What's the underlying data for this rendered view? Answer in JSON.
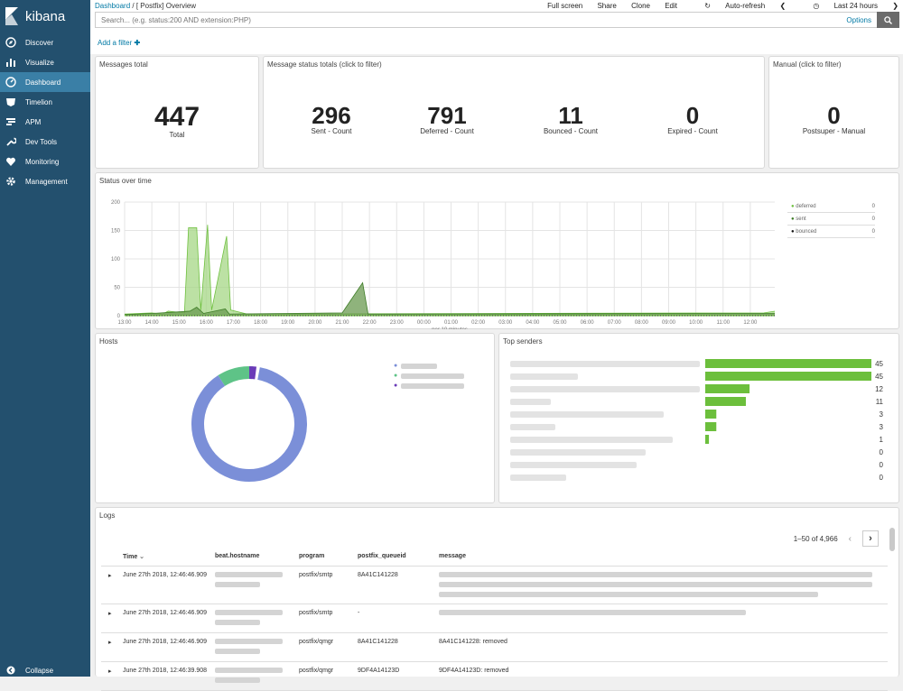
{
  "sidebar": {
    "brand": "kibana",
    "items": [
      {
        "label": "Discover",
        "icon": "compass-icon"
      },
      {
        "label": "Visualize",
        "icon": "bar-chart-icon"
      },
      {
        "label": "Dashboard",
        "icon": "dashboard-icon",
        "active": true
      },
      {
        "label": "Timelion",
        "icon": "timelion-icon"
      },
      {
        "label": "APM",
        "icon": "apm-icon"
      },
      {
        "label": "Dev Tools",
        "icon": "wrench-icon"
      },
      {
        "label": "Monitoring",
        "icon": "heartbeat-icon"
      },
      {
        "label": "Management",
        "icon": "gear-icon"
      }
    ],
    "collapse": "Collapse"
  },
  "topbar": {
    "breadcrumb_root": "Dashboard",
    "breadcrumb_sep": "/",
    "breadcrumb_current": "[ Postfix] Overview",
    "actions": [
      "Full screen",
      "Share",
      "Clone",
      "Edit",
      "Auto-refresh"
    ],
    "time_range": "Last 24 hours"
  },
  "search": {
    "placeholder": "Search... (e.g. status:200 AND extension:PHP)",
    "options": "Options"
  },
  "filter": {
    "add": "Add a filter"
  },
  "panels": {
    "messages_total": {
      "title": "Messages total",
      "value": "447",
      "label": "Total"
    },
    "status_totals": {
      "title": "Message status totals (click to filter)",
      "metrics": [
        {
          "value": "296",
          "label": "Sent - Count"
        },
        {
          "value": "791",
          "label": "Deferred - Count"
        },
        {
          "value": "11",
          "label": "Bounced - Count"
        },
        {
          "value": "0",
          "label": "Expired - Count"
        }
      ]
    },
    "manual": {
      "title": "Manual (click to filter)",
      "value": "0",
      "label": "Postsuper - Manual"
    },
    "status_over_time": {
      "title": "Status over time",
      "legend": [
        {
          "name": "deferred",
          "value": "0",
          "color": "#6fc03f"
        },
        {
          "name": "sent",
          "value": "0",
          "color": "#3e7d27"
        },
        {
          "name": "bounced",
          "value": "0",
          "color": "#111111"
        }
      ]
    },
    "hosts": {
      "title": "Hosts"
    },
    "top_senders": {
      "title": "Top senders"
    },
    "logs": {
      "title": "Logs",
      "pagination": "1–50 of 4,966",
      "columns": [
        "Time",
        "beat.hostname",
        "program",
        "postfix_queueid",
        "message"
      ],
      "rows": [
        {
          "time": "June 27th 2018, 12:46:46.909",
          "program": "postfix/smtp",
          "queueid": "8A41C141228",
          "message": ""
        },
        {
          "time": "June 27th 2018, 12:46:46.909",
          "program": "postfix/smtp",
          "queueid": "-",
          "message": ""
        },
        {
          "time": "June 27th 2018, 12:46:46.909",
          "program": "postfix/qmgr",
          "queueid": "8A41C141228",
          "message": "8A41C141228: removed"
        },
        {
          "time": "June 27th 2018, 12:46:39.908",
          "program": "postfix/qmgr",
          "queueid": "9DF4A14123D",
          "message": "9DF4A14123D: removed"
        }
      ]
    }
  },
  "chart_data": [
    {
      "type": "area",
      "title": "Status over time",
      "xlabel": "per 10 minutes",
      "x": [
        "13:00",
        "14:00",
        "15:00",
        "16:00",
        "17:00",
        "18:00",
        "19:00",
        "20:00",
        "21:00",
        "22:00",
        "23:00",
        "00:00",
        "01:00",
        "02:00",
        "03:00",
        "04:00",
        "05:00",
        "06:00",
        "07:00",
        "08:00",
        "09:00",
        "10:00",
        "11:00",
        "12:00"
      ],
      "yticks": [
        0,
        50,
        100,
        150,
        200
      ],
      "ylim": [
        0,
        200
      ],
      "series": [
        {
          "name": "deferred",
          "points": [
            [
              0,
              3
            ],
            [
              1,
              5
            ],
            [
              1.4,
              3
            ],
            [
              1.6,
              8
            ],
            [
              2.2,
              5
            ],
            [
              2.35,
              155
            ],
            [
              2.65,
              155
            ],
            [
              2.8,
              10
            ],
            [
              3.05,
              160
            ],
            [
              3.2,
              10
            ],
            [
              3.75,
              140
            ],
            [
              3.9,
              10
            ],
            [
              4.5,
              3
            ],
            [
              23.5,
              5
            ],
            [
              23.9,
              8
            ]
          ]
        },
        {
          "name": "sent",
          "points": [
            [
              0,
              2
            ],
            [
              1,
              4
            ],
            [
              2.4,
              8
            ],
            [
              2.65,
              15
            ],
            [
              2.9,
              4
            ],
            [
              3.7,
              12
            ],
            [
              3.85,
              3
            ],
            [
              8,
              5
            ],
            [
              8.75,
              58
            ],
            [
              8.95,
              3
            ],
            [
              9.5,
              3
            ],
            [
              23.9,
              4
            ]
          ]
        },
        {
          "name": "bounced",
          "points": [
            [
              0,
              0
            ],
            [
              23.9,
              0
            ]
          ]
        }
      ]
    },
    {
      "type": "pie",
      "title": "Hosts",
      "values": [
        88,
        10,
        2
      ],
      "colors": [
        "#7b8fd8",
        "#5ec387",
        "#6a3bb8"
      ]
    },
    {
      "type": "bar",
      "title": "Top senders",
      "values": [
        45,
        45,
        12,
        11,
        3,
        3,
        1,
        0,
        0,
        0
      ],
      "xlim": [
        0,
        63
      ]
    }
  ]
}
